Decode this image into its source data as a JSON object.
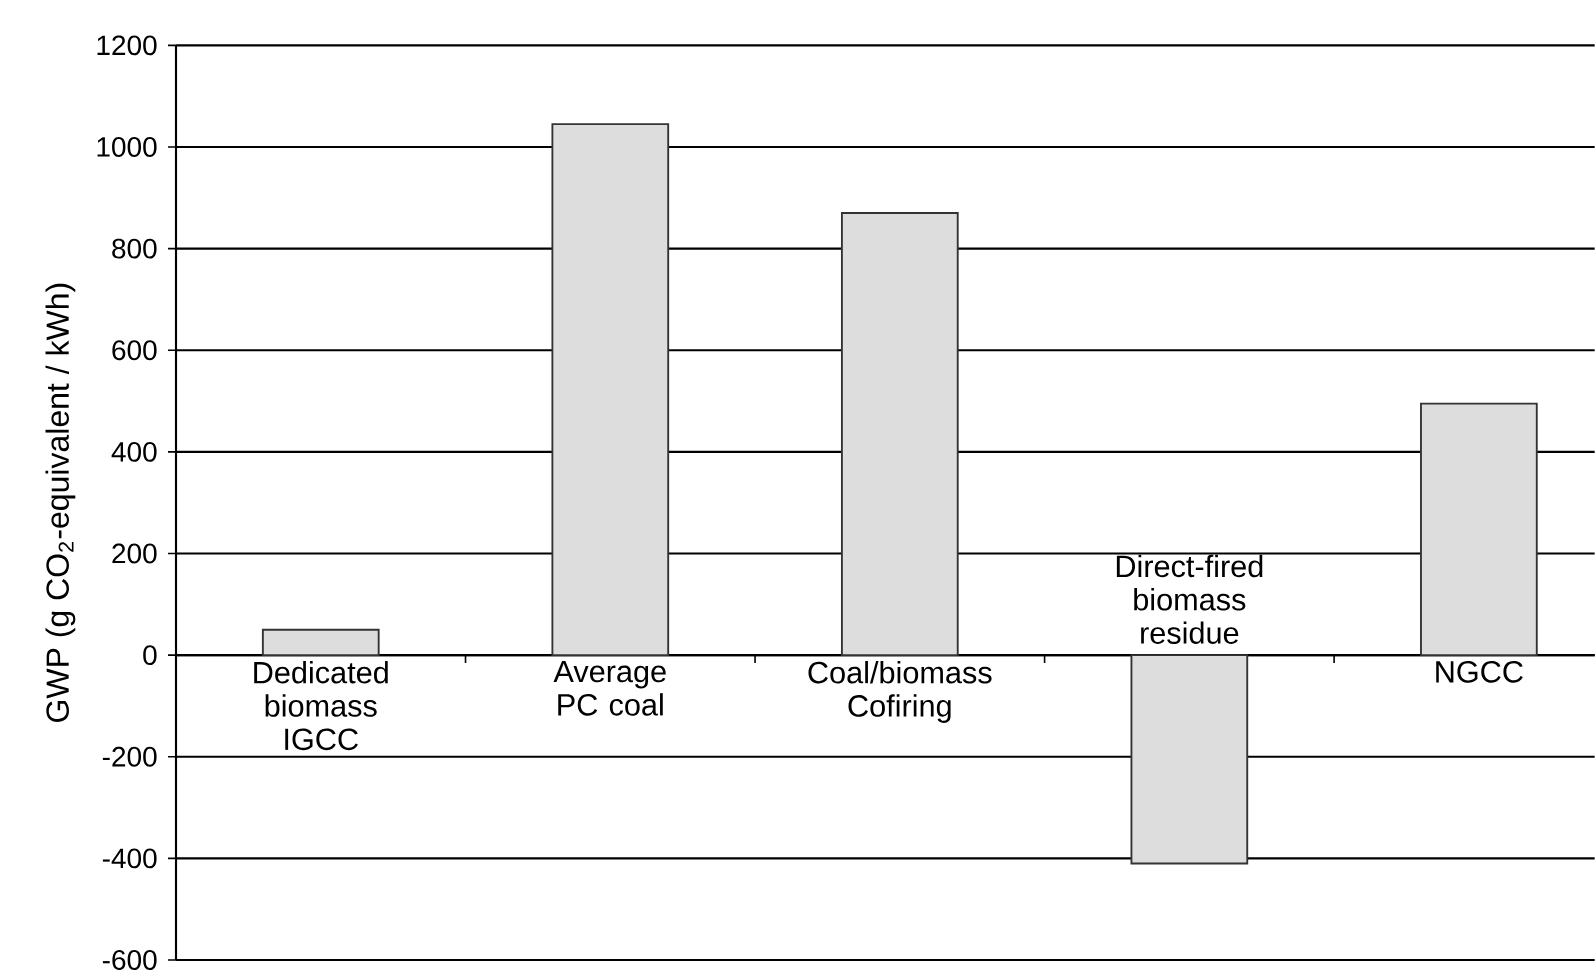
{
  "chart_data": {
    "type": "bar",
    "ylabel": "GWP (g CO$_{2}$-equivalent / kWh)",
    "categories": [
      "Dedicated biomass IGCC",
      "Average PC coal",
      "Coal/biomass Cofiring",
      "Direct-fired biomass residue",
      "NGCC"
    ],
    "values": [
      50,
      1045,
      870,
      -410,
      495
    ],
    "color": "#dddddd",
    "ylim": [
      -600,
      1200
    ],
    "yticks": [
      -600,
      -400,
      -200,
      0,
      200,
      400,
      600,
      800,
      1000,
      1200
    ],
    "grid": "y"
  }
}
